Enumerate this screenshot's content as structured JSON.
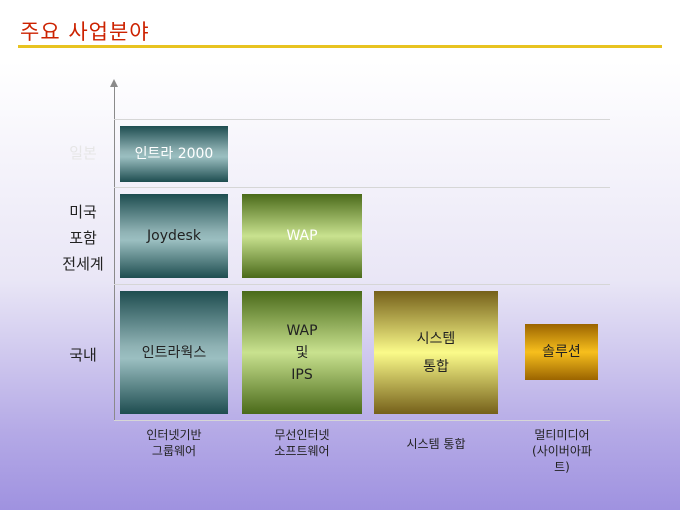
{
  "title": "주요 사업분야",
  "rows": {
    "japan": "일본",
    "us_world": [
      "미국",
      "포함",
      "전세계"
    ],
    "domestic": "국내"
  },
  "cells": {
    "intra2000": "인트라 2000",
    "joydesk": "Joydesk",
    "wap_top": "WAP",
    "intraworks": "인트라웍스",
    "wap_ips": [
      "WAP",
      "및",
      "IPS"
    ],
    "system_int": [
      "시스템",
      "통합"
    ],
    "solution": "솔루션"
  },
  "columns": {
    "groupware": [
      "인터넷기반",
      "그룹웨어"
    ],
    "wireless": [
      "무선인터넷",
      "소프트웨어"
    ],
    "sysint": "시스템 통합",
    "multimedia": [
      "멀티미디어",
      "(사이버아파",
      "트)"
    ]
  },
  "colors": {
    "title": "#cc2200",
    "title_rule": "#e8c320",
    "blue_box": "#8fb2b4",
    "green_box": "#c9e28f",
    "yellow_box": "#fbfb8a",
    "orange_box": "#f7bf1d"
  }
}
